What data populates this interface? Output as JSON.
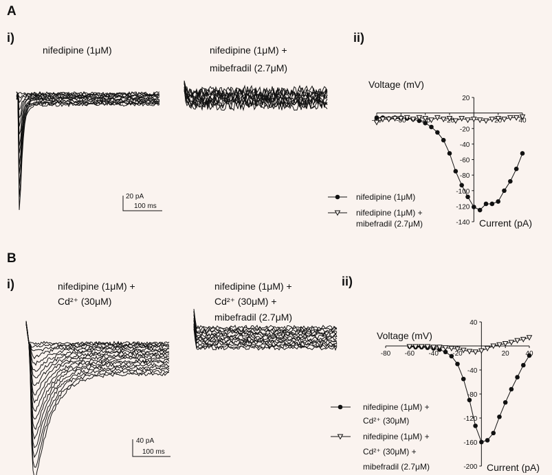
{
  "panel_a": {
    "label": "A",
    "traces": {
      "sub_label": "i)",
      "cond1_line1": "nifedipine (1μM)",
      "cond2_line1": "nifedipine (1μM) +",
      "cond2_line2": "mibefradil (2.7μM)",
      "scale_y": "20 pA",
      "scale_x": "100 ms"
    },
    "iv": {
      "sub_label": "ii)",
      "xlabel": "Voltage (mV)",
      "ylabel": "Current (pA)",
      "legend": [
        {
          "lines": [
            "nifedipine (1μM)"
          ]
        },
        {
          "lines": [
            "nifedipine (1μM) +",
            "mibefradil (2.7μM)"
          ]
        }
      ]
    }
  },
  "panel_b": {
    "label": "B",
    "traces": {
      "sub_label": "i)",
      "cond1_line1": "nifedipine (1μM) +",
      "cond1_line2": "Cd²⁺ (30μM)",
      "cond2_line1": "nifedipine (1μM) +",
      "cond2_line2": "Cd²⁺ (30μM) +",
      "cond2_line3": "mibefradil (2.7μM)",
      "scale_y": "40 pA",
      "scale_x": "100 ms"
    },
    "iv": {
      "sub_label": "ii)",
      "xlabel": "Voltage (mV)",
      "ylabel": "Current (pA)",
      "legend": [
        {
          "lines": [
            "nifedipine (1μM) +",
            "Cd²⁺ (30μM)"
          ]
        },
        {
          "lines": [
            "nifedipine (1μM) +",
            "Cd²⁺ (30μM) +",
            "mibefradil (2.7μM)"
          ]
        }
      ]
    }
  },
  "chart_data": [
    {
      "type": "line",
      "xlabel": "Voltage (mV)",
      "ylabel": "Current (pA)",
      "xlim": [
        -80,
        40
      ],
      "ylim": [
        -140,
        20
      ],
      "xticks": [
        -80,
        -60,
        -40,
        -20,
        20,
        40
      ],
      "yticks": [
        20,
        -20,
        -40,
        -60,
        -80,
        -100,
        -120,
        -140
      ],
      "series": [
        {
          "name": "nifedipine (1μM)",
          "marker": "filled-circle",
          "x": [
            -80,
            -75,
            -70,
            -65,
            -60,
            -55,
            -50,
            -45,
            -40,
            -35,
            -30,
            -25,
            -20,
            -15,
            -10,
            -5,
            0,
            5,
            10,
            15,
            20,
            25,
            30,
            35,
            40
          ],
          "y": [
            -6,
            -6,
            -7,
            -6,
            -6,
            -7,
            -8,
            -10,
            -13,
            -18,
            -25,
            -35,
            -52,
            -75,
            -93,
            -108,
            -121,
            -125,
            -117,
            -117,
            -114,
            -100,
            -88,
            -72,
            -52
          ]
        },
        {
          "name": "nifedipine (1μM) + mibefradil (2.7μM)",
          "marker": "open-triangle",
          "x": [
            -80,
            -75,
            -70,
            -65,
            -60,
            -55,
            -50,
            -45,
            -40,
            -35,
            -30,
            -25,
            -20,
            -15,
            -10,
            -5,
            0,
            5,
            10,
            15,
            20,
            25,
            30,
            35,
            40
          ],
          "y": [
            -12,
            -8,
            -8,
            -7,
            -7,
            -6,
            -8,
            -6,
            -7,
            -9,
            -6,
            -8,
            -7,
            -10,
            -7,
            -9,
            -8,
            -9,
            -10,
            -8,
            -7,
            -8,
            -6,
            -6,
            -5
          ]
        }
      ]
    },
    {
      "type": "line",
      "xlabel": "Voltage (mV)",
      "ylabel": "Current (pA)",
      "xlim": [
        -80,
        40
      ],
      "ylim": [
        -200,
        40
      ],
      "xticks": [
        -80,
        -60,
        -40,
        -20,
        20,
        40
      ],
      "yticks": [
        40,
        -40,
        -80,
        -120,
        -160,
        -200
      ],
      "series": [
        {
          "name": "nifedipine (1μM) + Cd²⁺ (30μM)",
          "marker": "filled-circle",
          "x": [
            -60,
            -55,
            -50,
            -45,
            -40,
            -35,
            -30,
            -25,
            -20,
            -15,
            -10,
            -5,
            0,
            5,
            10,
            15,
            20,
            25,
            30,
            35,
            40
          ],
          "y": [
            -1,
            -2,
            -2,
            -3,
            -4,
            -6,
            -10,
            -17,
            -30,
            -55,
            -90,
            -133,
            -160,
            -157,
            -145,
            -118,
            -94,
            -72,
            -52,
            -32,
            -16
          ]
        },
        {
          "name": "nifedipine (1μM) + Cd²⁺ (30μM) + mibefradil (2.7μM)",
          "marker": "open-triangle",
          "x": [
            -60,
            -55,
            -50,
            -45,
            -40,
            -35,
            -30,
            -25,
            -20,
            -15,
            -10,
            -5,
            0,
            5,
            10,
            15,
            20,
            25,
            30,
            35,
            40
          ],
          "y": [
            -1,
            -1,
            -1,
            -1,
            -2,
            -2,
            -3,
            -4,
            -5,
            -7,
            -9,
            -10,
            -8,
            -4,
            0,
            2,
            4,
            6,
            9,
            11,
            14
          ]
        }
      ]
    }
  ]
}
